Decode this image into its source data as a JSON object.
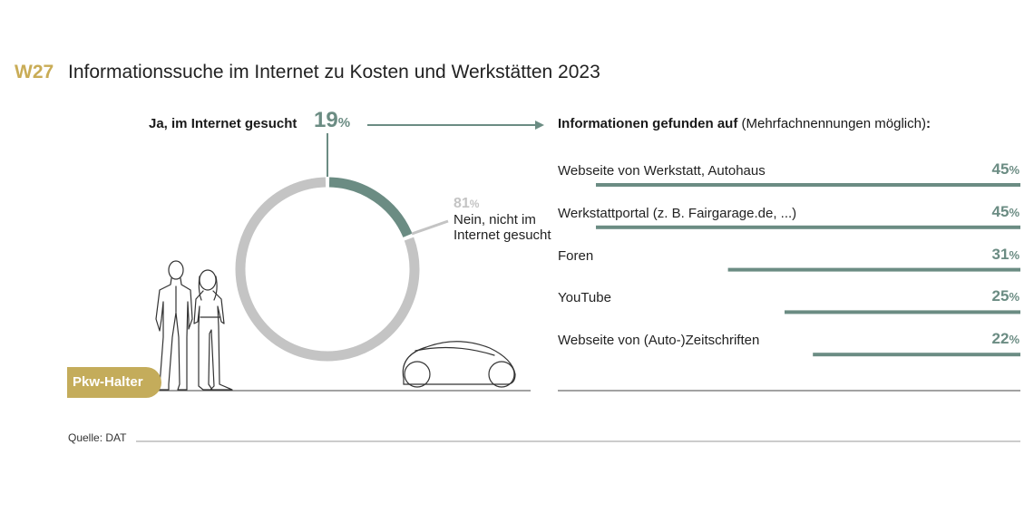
{
  "header": {
    "code": "W27",
    "title": "Informationssuche im Internet zu Kosten und Werkstätten 2023"
  },
  "donut": {
    "yes_label": "Ja, im Internet gesucht",
    "yes_value": "19",
    "no_value": "81",
    "percent_sign": "%",
    "no_label": "Nein, nicht im Internet gesucht"
  },
  "right": {
    "heading_bold": "Informationen gefunden auf",
    "heading_normal": " (Mehrfachnennungen möglich)",
    "heading_colon": ":"
  },
  "badge": "Pkw-Halter",
  "source": "Quelle: DAT",
  "colors": {
    "accent": "#6b8c83",
    "gray": "#c4c4c4",
    "gold": "#c4ac5b"
  },
  "chart_data": [
    {
      "type": "pie",
      "slices": [
        {
          "label": "Ja, im Internet gesucht",
          "value": 19
        },
        {
          "label": "Nein, nicht im Internet gesucht",
          "value": 81
        }
      ]
    },
    {
      "type": "bar",
      "title": "Informationen gefunden auf (Mehrfachnennungen möglich):",
      "categories": [
        "Webseite von Werkstatt, Autohaus",
        "Werkstattportal (z. B. Fairgarage.de, ...)",
        "Foren",
        "YouTube",
        "Webseite von (Auto-)Zeitschriften"
      ],
      "values": [
        45,
        45,
        31,
        25,
        22
      ],
      "labels": [
        "45",
        "45",
        "31",
        "25",
        "22"
      ]
    }
  ]
}
